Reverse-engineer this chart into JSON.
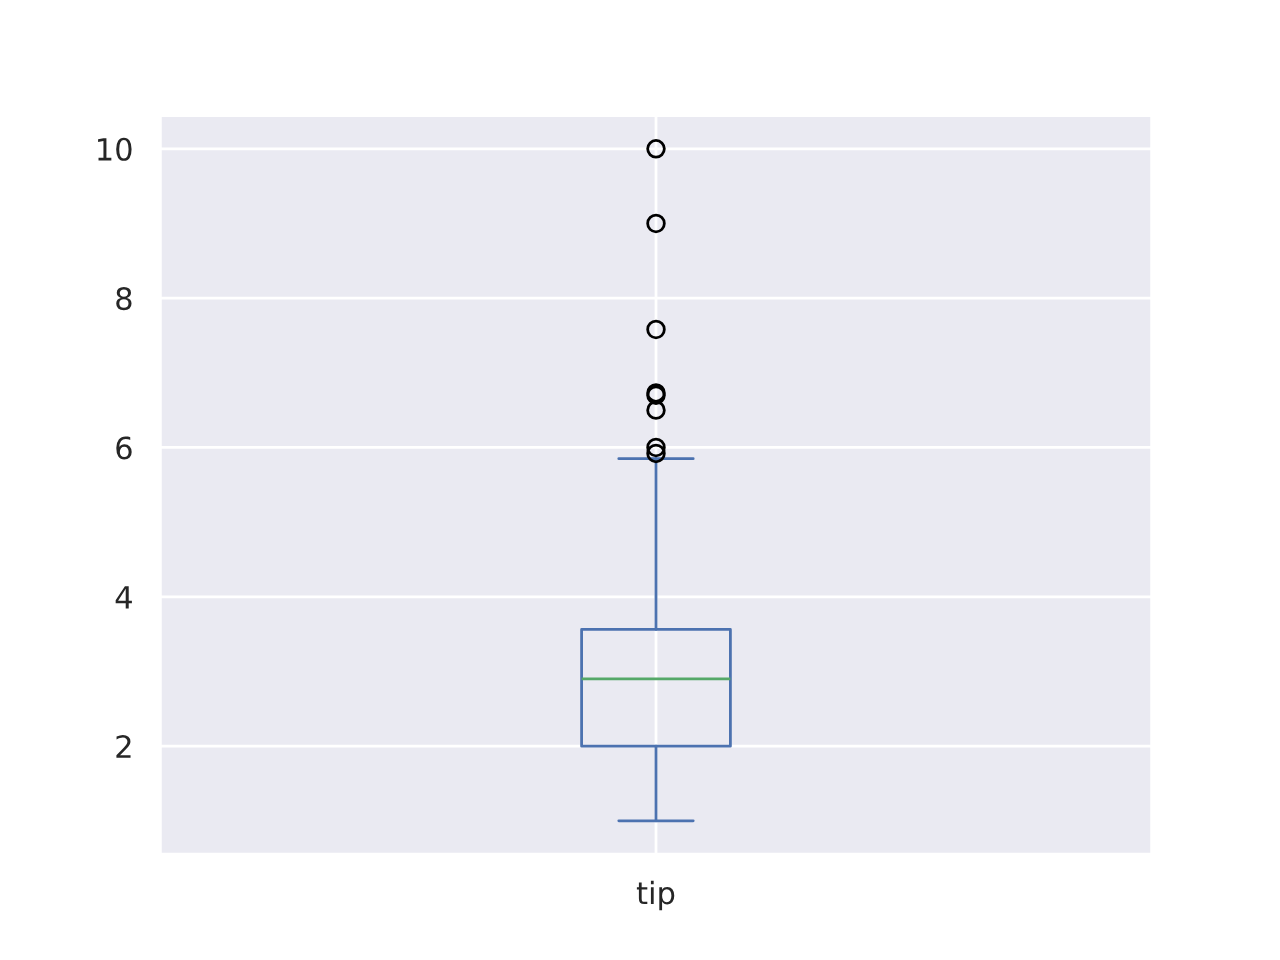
{
  "chart_data": {
    "type": "box",
    "categories": [
      "tip"
    ],
    "boxes": [
      {
        "low": 1.0,
        "q1": 2.0,
        "median": 2.9,
        "q3": 3.5625,
        "high": 5.85,
        "outliers": [
          5.92,
          6.0,
          6.5,
          6.7,
          6.73,
          7.58,
          9.0,
          10.0
        ]
      }
    ],
    "color": "#4c72b0",
    "ylim": [
      0.55,
      10.45
    ],
    "yticks": [
      2,
      4,
      6,
      8,
      10
    ],
    "grid": true,
    "legend": false
  }
}
